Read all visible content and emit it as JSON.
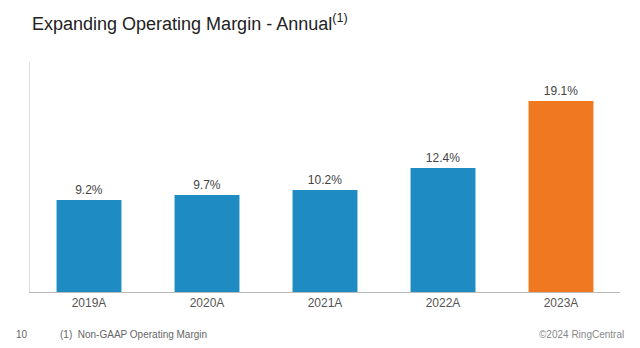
{
  "chart_data": {
    "type": "bar",
    "title": "Expanding Operating Margin - Annual",
    "annotations": [
      "(1)",
      "(1)  Non-GAAP Operating Margin",
      "10",
      "©2024 RingCentral"
    ],
    "categories": [
      "2019A",
      "2020A",
      "2021A",
      "2022A",
      "2023A"
    ],
    "values": [
      9.2,
      9.7,
      10.2,
      12.4,
      19.1
    ],
    "value_labels": [
      "9.2%",
      "9.7%",
      "10.2%",
      "12.4%",
      "19.1%"
    ],
    "data_labels": true,
    "colors": [
      "#1e8bc3",
      "#1e8bc3",
      "#1e8bc3",
      "#1e8bc3",
      "#f07820"
    ],
    "ylim": [
      0,
      23
    ],
    "tick_labels": "x",
    "grid": false
  }
}
